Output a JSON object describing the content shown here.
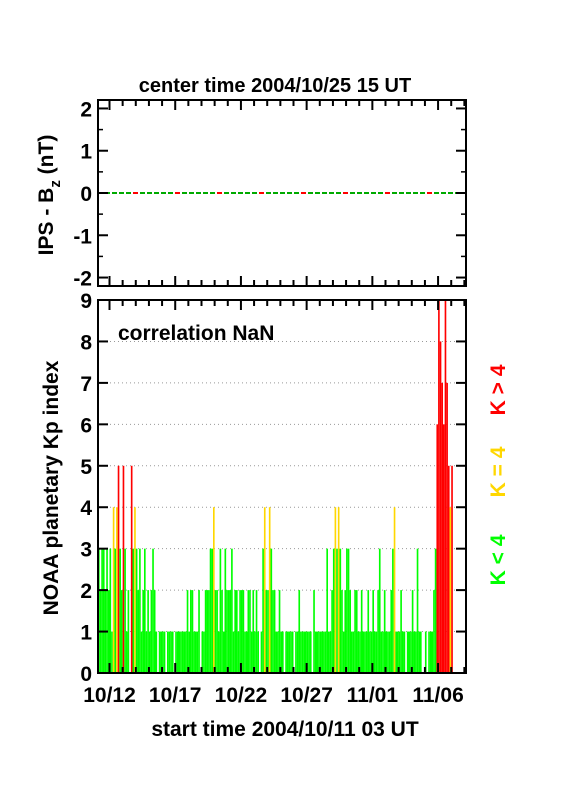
{
  "chart_data": [
    {
      "type": "line",
      "title": "center time 2004/10/25 15 UT",
      "ylabel_main": "IPS - B",
      "ylabel_sub": "z",
      "ylabel_unit": " (nT)",
      "ylim": [
        -2.2,
        2.2
      ],
      "yticks": [
        "2",
        "1",
        "0",
        "-1",
        "-2"
      ],
      "ytick_values": [
        2,
        1,
        0,
        -1,
        -2
      ],
      "series": [
        {
          "values_constant": 0,
          "colors": [
            "#00aa00",
            "#ff0000"
          ]
        }
      ]
    },
    {
      "type": "bar",
      "annotation": "correlation NaN",
      "ylabel": "NOAA planetary Kp index",
      "xlabel": "start time 2004/10/11 03 UT",
      "ylim": [
        0,
        9
      ],
      "yticks": [
        "0",
        "1",
        "2",
        "3",
        "4",
        "5",
        "6",
        "7",
        "8",
        "9"
      ],
      "xticks": [
        "10/12",
        "10/17",
        "10/22",
        "10/27",
        "11/01",
        "11/06"
      ],
      "xtick_days": [
        0.875,
        5.875,
        10.875,
        15.875,
        20.875,
        25.875
      ],
      "x_range_days": [
        0,
        28
      ],
      "legend": [
        {
          "label": "K < 4",
          "color": "#00ff00"
        },
        {
          "label": "K = 4",
          "color": "#ffd700"
        },
        {
          "label": "K > 4",
          "color": "#ff0000"
        }
      ],
      "kp_3hourly": [
        3,
        2,
        3,
        3,
        2,
        3,
        2,
        3,
        1,
        4,
        3,
        4,
        5,
        3,
        2,
        5,
        3,
        1,
        2,
        0,
        5,
        3,
        4,
        3,
        2,
        3,
        1,
        2,
        3,
        1,
        2,
        1,
        2,
        3,
        2,
        1,
        0,
        1,
        1,
        1,
        1,
        0,
        1,
        1,
        1,
        1,
        0,
        1,
        1,
        1,
        1,
        1,
        1,
        1,
        2,
        1,
        2,
        2,
        1,
        1,
        1,
        2,
        0,
        1,
        1,
        2,
        2,
        2,
        3,
        3,
        4,
        2,
        2,
        1,
        3,
        2,
        1,
        3,
        2,
        2,
        2,
        3,
        1,
        2,
        2,
        1,
        2,
        2,
        2,
        1,
        1,
        2,
        2,
        1,
        2,
        1,
        2,
        1,
        0,
        1,
        3,
        4,
        2,
        2,
        4,
        3,
        2,
        2,
        1,
        1,
        2,
        1,
        1,
        0,
        1,
        1,
        1,
        1,
        1,
        0,
        1,
        1,
        2,
        1,
        1,
        1,
        1,
        1,
        1,
        1,
        0,
        2,
        1,
        1,
        1,
        1,
        1,
        1,
        1,
        3,
        1,
        1,
        2,
        3,
        4,
        3,
        4,
        3,
        2,
        1,
        2,
        3,
        3,
        2,
        1,
        1,
        2,
        2,
        1,
        1,
        2,
        1,
        1,
        1,
        2,
        1,
        1,
        2,
        1,
        1,
        2,
        3,
        1,
        1,
        2,
        1,
        1,
        1,
        2,
        3,
        4,
        1,
        1,
        1,
        2,
        1,
        1,
        0,
        1,
        1,
        1,
        2,
        1,
        1,
        3,
        1,
        1,
        0,
        0,
        1,
        0,
        1,
        1,
        1,
        2,
        3,
        6,
        9,
        8,
        7,
        6,
        9,
        7,
        5,
        4,
        5
      ]
    }
  ]
}
